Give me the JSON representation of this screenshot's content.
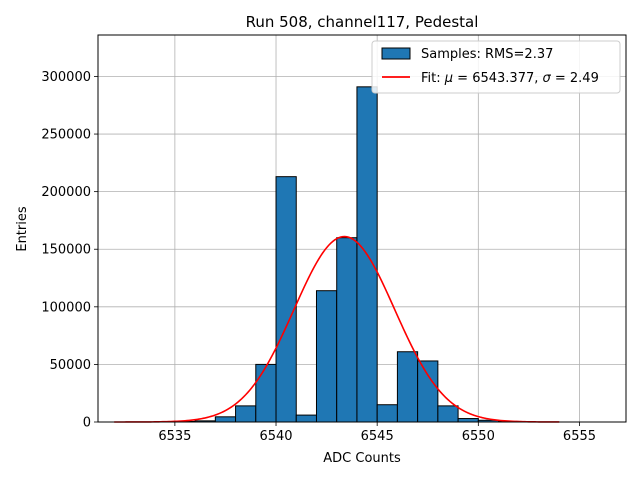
{
  "chart_data": {
    "type": "bar",
    "title": "Run 508, channel117, Pedestal",
    "xlabel": "ADC Counts",
    "ylabel": "Entries",
    "xlim": [
      6531.2,
      6557.3
    ],
    "ylim": [
      0,
      336000
    ],
    "grid": true,
    "legend_position": "top-right",
    "x_ticks": [
      6535,
      6540,
      6545,
      6550,
      6555
    ],
    "y_ticks": [
      0,
      50000,
      100000,
      150000,
      200000,
      250000,
      300000
    ],
    "x_tick_labels": [
      "6535",
      "6540",
      "6545",
      "6550",
      "6555"
    ],
    "y_tick_labels": [
      "0",
      "50000",
      "100000",
      "150000",
      "200000",
      "250000",
      "300000"
    ],
    "bin_width": 1,
    "bin_centers": [
      6535.5,
      6536.5,
      6537.5,
      6538.5,
      6539.5,
      6540.5,
      6541.5,
      6542.5,
      6543.5,
      6544.5,
      6545.5,
      6546.5,
      6547.5,
      6548.5,
      6549.5,
      6550.5,
      6551.5
    ],
    "values": [
      500,
      1000,
      4500,
      14000,
      50000,
      213000,
      6000,
      114000,
      160000,
      291000,
      15000,
      61000,
      53000,
      14000,
      3000,
      1500,
      500
    ],
    "series": [
      {
        "name": "Samples: RMS=2.37",
        "kind": "histogram",
        "color": "#1f77b4",
        "edge_color": "#000000"
      },
      {
        "name": "Fit: μ = 6543.377, σ = 2.49",
        "kind": "gaussian",
        "color": "#ff0000",
        "mu": 6543.377,
        "sigma": 2.49,
        "amplitude": 161000,
        "x_range": [
          6532,
          6554
        ]
      }
    ],
    "legend": {
      "samples_label": "Samples: RMS=2.37",
      "fit_prefix": "Fit: ",
      "mu_symbol": "μ",
      "mu_value": " = 6543.377, ",
      "sigma_symbol": "σ",
      "sigma_value": " = 2.49"
    }
  }
}
